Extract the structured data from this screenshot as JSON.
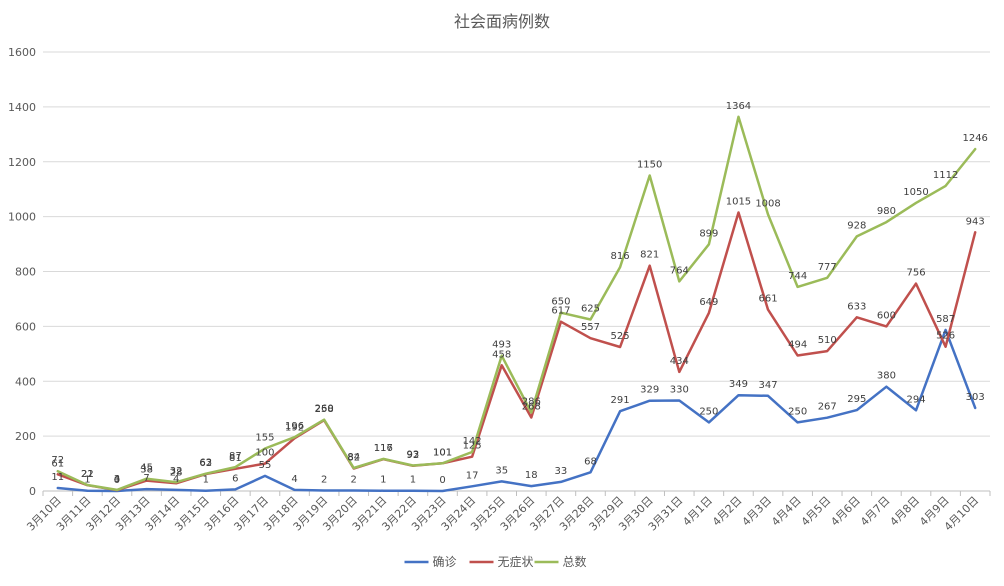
{
  "chart_data": {
    "type": "line",
    "title": "社会面病例数",
    "xlabel": "",
    "ylabel": "",
    "ylim": [
      0,
      1600
    ],
    "yticks": [
      0,
      200,
      400,
      600,
      800,
      1000,
      1200,
      1400,
      1600
    ],
    "grid": true,
    "legend_position": "bottom",
    "categories": [
      "3月10日",
      "3月11日",
      "3月12日",
      "3月13日",
      "3月14日",
      "3月15日",
      "3月16日",
      "3月17日",
      "3月18日",
      "3月19日",
      "3月20日",
      "3月21日",
      "3月22日",
      "3月23日",
      "3月24日",
      "3月25日",
      "3月26日",
      "3月27日",
      "3月28日",
      "3月29日",
      "3月30日",
      "3月31日",
      "4月1日",
      "4月2日",
      "4月3日",
      "4月4日",
      "4月5日",
      "4月6日",
      "4月7日",
      "4月8日",
      "4月9日",
      "4月10日"
    ],
    "series": [
      {
        "name": "确诊",
        "color": "#4472c4",
        "values": [
          11,
          1,
          0,
          7,
          4,
          1,
          6,
          55,
          4,
          2,
          2,
          1,
          1,
          0,
          17,
          35,
          18,
          33,
          68,
          291,
          329,
          330,
          250,
          349,
          347,
          250,
          267,
          295,
          380,
          294,
          587,
          303
        ]
      },
      {
        "name": "无症状",
        "color": "#c0504d",
        "values": [
          61,
          21,
          3,
          38,
          28,
          62,
          81,
          100,
          192,
          258,
          82,
          116,
          92,
          101,
          125,
          458,
          268,
          617,
          557,
          525,
          821,
          434,
          649,
          1015,
          661,
          494,
          510,
          633,
          600,
          756,
          526,
          943
        ]
      },
      {
        "name": "总数",
        "color": "#9bbb59",
        "values": [
          72,
          22,
          4,
          45,
          32,
          63,
          87,
          155,
          196,
          260,
          84,
          117,
          93,
          101,
          142,
          493,
          286,
          650,
          625,
          816,
          1150,
          764,
          899,
          1364,
          1008,
          744,
          777,
          928,
          980,
          1050,
          1112,
          1246
        ]
      }
    ]
  }
}
